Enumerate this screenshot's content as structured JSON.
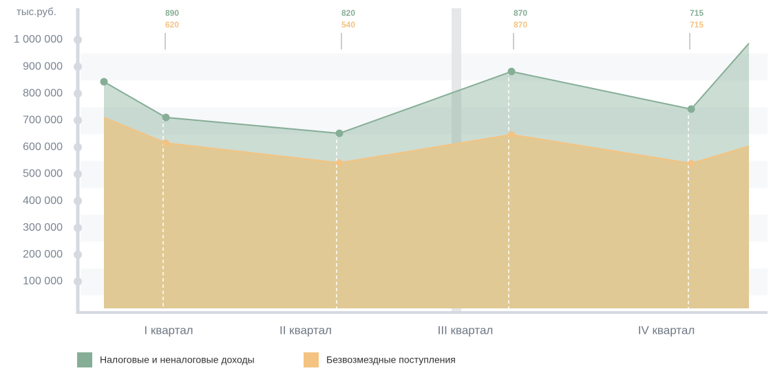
{
  "chart_data": {
    "type": "area",
    "y_unit_label": "тыс.руб.",
    "categories": [
      null,
      null,
      null,
      null,
      null,
      null
    ],
    "x_labels": [
      "I квартал",
      "II квартал",
      "III квартал",
      "IV квартал"
    ],
    "series": [
      {
        "name": "Налоговые и неналоговые доходы",
        "color": "#86ae97",
        "values": [
          844000,
          711000,
          652000,
          882000,
          742000,
          987000
        ]
      },
      {
        "name": "Безвозмездные поступления",
        "color": "#f4c382",
        "values": [
          711000,
          616000,
          542000,
          647000,
          540000,
          604000
        ]
      }
    ],
    "annotations": [
      {
        "top": 890,
        "bottom": 620
      },
      {
        "top": 820,
        "bottom": 540
      },
      {
        "top": 870,
        "bottom": 870
      },
      {
        "top": 715,
        "bottom": 715
      }
    ],
    "ylim": [
      0,
      1000000
    ],
    "yticks": [
      {
        "value": 100000,
        "label": "100 000"
      },
      {
        "value": 200000,
        "label": "200 000"
      },
      {
        "value": 300000,
        "label": "300 000"
      },
      {
        "value": 400000,
        "label": "400 000"
      },
      {
        "value": 500000,
        "label": "500 000"
      },
      {
        "value": 600000,
        "label": "600 000"
      },
      {
        "value": 700000,
        "label": "700 000"
      },
      {
        "value": 800000,
        "label": "800 000"
      },
      {
        "value": 900000,
        "label": "900 000"
      },
      {
        "value": 1000000,
        "label": "1 000 000"
      }
    ],
    "grid": true,
    "legend": "bottom"
  }
}
